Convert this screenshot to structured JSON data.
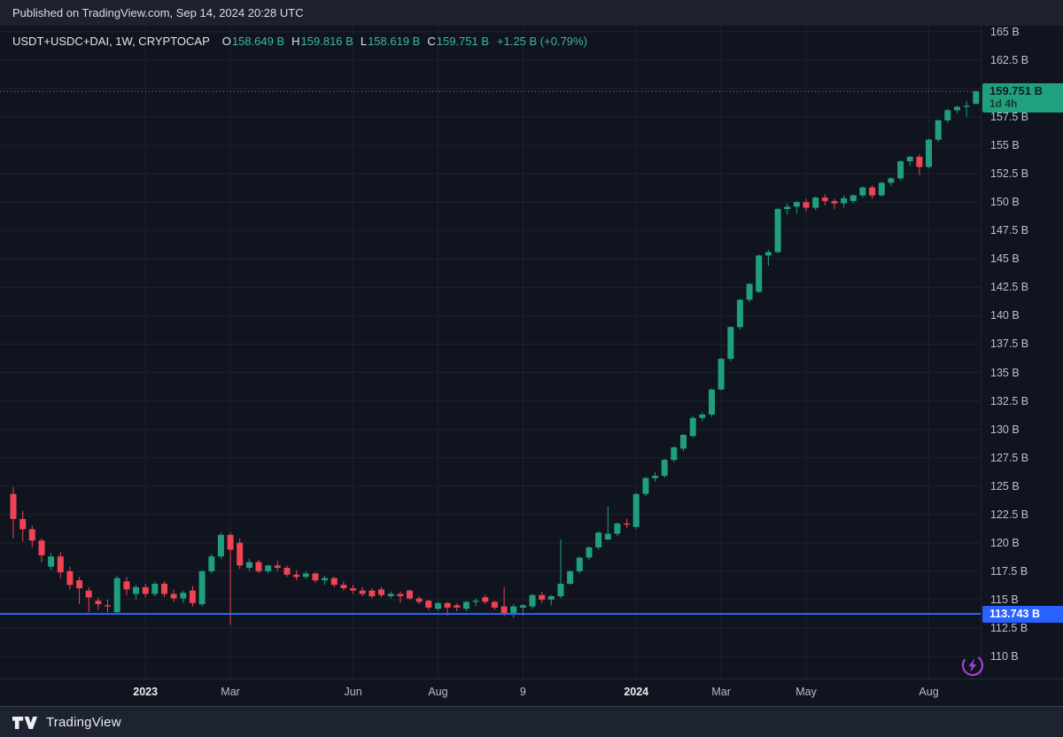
{
  "header": {
    "published": "Published on TradingView.com, Sep 14, 2024 20:28 UTC"
  },
  "legend": {
    "symbol": "USDT+USDC+DAI, 1W, CRYPTOCAP",
    "items": [
      {
        "k": "O",
        "v": "158.649 B"
      },
      {
        "k": "H",
        "v": "159.816 B"
      },
      {
        "k": "L",
        "v": "158.619 B"
      },
      {
        "k": "C",
        "v": "159.751 B"
      }
    ],
    "change": "+1.25 B (+0.79%)"
  },
  "price_scale": {
    "ticks": [
      {
        "value": 165,
        "label": "165 B"
      },
      {
        "value": 162.5,
        "label": "162.5 B"
      },
      {
        "value": 160,
        "label": ""
      },
      {
        "value": 157.5,
        "label": "157.5 B"
      },
      {
        "value": 155,
        "label": "155 B"
      },
      {
        "value": 152.5,
        "label": "152.5 B"
      },
      {
        "value": 150,
        "label": "150 B"
      },
      {
        "value": 147.5,
        "label": "147.5 B"
      },
      {
        "value": 145,
        "label": "145 B"
      },
      {
        "value": 142.5,
        "label": "142.5 B"
      },
      {
        "value": 140,
        "label": "140 B"
      },
      {
        "value": 137.5,
        "label": "137.5 B"
      },
      {
        "value": 135,
        "label": "135 B"
      },
      {
        "value": 132.5,
        "label": "132.5 B"
      },
      {
        "value": 130,
        "label": "130 B"
      },
      {
        "value": 127.5,
        "label": "127.5 B"
      },
      {
        "value": 125,
        "label": "125 B"
      },
      {
        "value": 122.5,
        "label": "122.5 B"
      },
      {
        "value": 120,
        "label": "120 B"
      },
      {
        "value": 117.5,
        "label": "117.5 B"
      },
      {
        "value": 115,
        "label": "115 B"
      },
      {
        "value": 112.5,
        "label": "112.5 B"
      },
      {
        "value": 110,
        "label": "110 B"
      }
    ],
    "last_price_badge": {
      "label": "159.751 B",
      "countdown": "1d 4h",
      "value": 159.751
    },
    "level_badge": {
      "label": "113.743 B",
      "value": 113.743
    }
  },
  "time_scale": {
    "ticks": [
      {
        "label": "2023",
        "week": 14,
        "major": true
      },
      {
        "label": "Mar",
        "week": 23,
        "major": false
      },
      {
        "label": "Jun",
        "week": 36,
        "major": false
      },
      {
        "label": "Aug",
        "week": 45,
        "major": false
      },
      {
        "label": "9",
        "week": 54,
        "major": false
      },
      {
        "label": "2024",
        "week": 66,
        "major": true
      },
      {
        "label": "Mar",
        "week": 75,
        "major": false
      },
      {
        "label": "May",
        "week": 84,
        "major": false
      },
      {
        "label": "Aug",
        "week": 97,
        "major": false
      }
    ]
  },
  "footer": {
    "brand": "TradingView"
  },
  "colors": {
    "background": "#10141f",
    "panel": "#1c212d",
    "footer_bar": "#1d2330",
    "grid": "#1c2230",
    "up": "#209f7e",
    "down": "#ef4454",
    "level_line": "#2962ff",
    "last_price_line": "#4d9b82",
    "badge_up_bg": "#21a07e",
    "badge_up_text": "#0b221c",
    "badge_level_bg": "#2962ff",
    "accent_purple": "#a13fd6",
    "axis_text": "#bac1cf",
    "axis_text_major": "#e9edf4",
    "legend_value": "#3bb9a0"
  },
  "chart_data": {
    "type": "candlestick",
    "symbol": "USDT+USDC+DAI",
    "interval": "1W",
    "exchange": "CRYPTOCAP",
    "unit": "billions USD (market cap)",
    "ylim": [
      108.05,
      165.62
    ],
    "grid": true,
    "level_line": 113.743,
    "last_bar": {
      "open": 158.649,
      "high": 159.816,
      "low": 158.619,
      "close": 159.751,
      "change": "+1.25 B",
      "change_pct": "+0.79%"
    },
    "candle_format": [
      "open",
      "high",
      "low",
      "close"
    ],
    "candles": [
      [
        124.3,
        124.9,
        120.4,
        122.1
      ],
      [
        122.1,
        122.8,
        120.1,
        121.2
      ],
      [
        121.2,
        121.5,
        119.6,
        120.2
      ],
      [
        120.2,
        120.4,
        118.3,
        118.9
      ],
      [
        117.9,
        119.1,
        117.6,
        118.8
      ],
      [
        118.8,
        119.2,
        116.9,
        117.4
      ],
      [
        117.5,
        117.9,
        115.9,
        116.3
      ],
      [
        116.7,
        117.0,
        114.6,
        116.0
      ],
      [
        115.8,
        116.1,
        113.9,
        115.2
      ],
      [
        114.9,
        115.2,
        114.1,
        114.6
      ],
      [
        114.5,
        115.0,
        113.9,
        114.4
      ],
      [
        113.9,
        117.1,
        113.7,
        116.9
      ],
      [
        116.6,
        117.0,
        115.4,
        115.9
      ],
      [
        115.5,
        116.3,
        115.0,
        116.1
      ],
      [
        116.1,
        116.4,
        115.2,
        115.5
      ],
      [
        115.5,
        116.6,
        115.3,
        116.4
      ],
      [
        116.4,
        116.6,
        115.2,
        115.5
      ],
      [
        115.5,
        115.9,
        114.8,
        115.1
      ],
      [
        115.1,
        115.8,
        114.7,
        115.6
      ],
      [
        115.8,
        116.2,
        114.4,
        114.7
      ],
      [
        114.6,
        117.6,
        114.4,
        117.5
      ],
      [
        117.5,
        119.0,
        117.3,
        118.8
      ],
      [
        118.8,
        120.9,
        118.6,
        120.7
      ],
      [
        120.7,
        120.9,
        112.8,
        119.4
      ],
      [
        120.0,
        120.4,
        117.7,
        118.0
      ],
      [
        117.8,
        118.6,
        117.5,
        118.3
      ],
      [
        118.3,
        118.5,
        117.3,
        117.5
      ],
      [
        117.5,
        118.1,
        117.3,
        118.0
      ],
      [
        118.0,
        118.4,
        117.5,
        117.8
      ],
      [
        117.8,
        118.0,
        117.0,
        117.2
      ],
      [
        117.2,
        117.6,
        116.7,
        117.0
      ],
      [
        117.0,
        117.5,
        116.8,
        117.3
      ],
      [
        117.3,
        117.4,
        116.5,
        116.7
      ],
      [
        116.7,
        117.1,
        116.3,
        116.9
      ],
      [
        116.9,
        117.0,
        116.1,
        116.3
      ],
      [
        116.3,
        116.6,
        115.8,
        116.0
      ],
      [
        116.0,
        116.3,
        115.5,
        115.8
      ],
      [
        115.8,
        116.1,
        115.3,
        115.5
      ],
      [
        115.8,
        116.0,
        115.1,
        115.3
      ],
      [
        115.9,
        116.1,
        115.2,
        115.4
      ],
      [
        115.3,
        115.7,
        115.1,
        115.5
      ],
      [
        115.5,
        115.7,
        114.7,
        115.3
      ],
      [
        115.8,
        115.9,
        115.0,
        115.1
      ],
      [
        115.1,
        115.3,
        114.6,
        114.8
      ],
      [
        114.9,
        115.0,
        114.1,
        114.3
      ],
      [
        114.2,
        114.8,
        114.0,
        114.7
      ],
      [
        114.7,
        114.8,
        113.6,
        114.3
      ],
      [
        114.5,
        114.7,
        114.0,
        114.3
      ],
      [
        114.2,
        114.9,
        114.0,
        114.8
      ],
      [
        114.8,
        115.1,
        114.4,
        114.9
      ],
      [
        115.2,
        115.4,
        114.6,
        114.8
      ],
      [
        114.8,
        114.9,
        114.1,
        114.3
      ],
      [
        114.4,
        116.1,
        113.5,
        113.7
      ],
      [
        113.7,
        114.6,
        113.4,
        114.4
      ],
      [
        114.3,
        114.6,
        113.6,
        114.5
      ],
      [
        114.4,
        115.5,
        114.2,
        115.4
      ],
      [
        115.4,
        115.7,
        114.7,
        115.0
      ],
      [
        115.0,
        115.4,
        114.5,
        115.3
      ],
      [
        115.3,
        120.3,
        115.1,
        116.4
      ],
      [
        116.4,
        117.6,
        116.3,
        117.5
      ],
      [
        117.5,
        118.8,
        117.3,
        118.7
      ],
      [
        118.7,
        119.7,
        118.5,
        119.6
      ],
      [
        119.6,
        121.0,
        119.4,
        120.9
      ],
      [
        120.3,
        123.2,
        120.2,
        120.8
      ],
      [
        120.8,
        121.8,
        120.6,
        121.7
      ],
      [
        121.7,
        122.1,
        121.3,
        121.6
      ],
      [
        121.4,
        124.4,
        121.2,
        124.3
      ],
      [
        124.3,
        125.8,
        124.1,
        125.7
      ],
      [
        125.7,
        126.2,
        125.4,
        125.9
      ],
      [
        125.9,
        127.4,
        125.7,
        127.3
      ],
      [
        127.3,
        128.5,
        127.1,
        128.4
      ],
      [
        128.3,
        129.6,
        128.1,
        129.5
      ],
      [
        129.4,
        131.2,
        129.3,
        131.0
      ],
      [
        131.0,
        131.5,
        130.7,
        131.3
      ],
      [
        131.3,
        133.6,
        131.1,
        133.5
      ],
      [
        133.5,
        136.3,
        133.4,
        136.2
      ],
      [
        136.2,
        139.1,
        136.0,
        139.0
      ],
      [
        139.0,
        141.5,
        138.8,
        141.4
      ],
      [
        141.4,
        142.9,
        141.2,
        142.8
      ],
      [
        142.1,
        145.4,
        142.0,
        145.3
      ],
      [
        145.3,
        145.8,
        144.4,
        145.6
      ],
      [
        145.6,
        149.5,
        145.5,
        149.4
      ],
      [
        149.4,
        149.9,
        148.9,
        149.6
      ],
      [
        149.6,
        150.1,
        149.0,
        150.0
      ],
      [
        150.0,
        150.3,
        149.2,
        149.5
      ],
      [
        149.5,
        150.5,
        149.3,
        150.4
      ],
      [
        150.4,
        150.7,
        149.7,
        150.1
      ],
      [
        150.1,
        150.3,
        149.4,
        149.9
      ],
      [
        149.9,
        150.6,
        149.5,
        150.35
      ],
      [
        150.1,
        150.7,
        149.9,
        150.6
      ],
      [
        150.6,
        151.4,
        150.4,
        151.3
      ],
      [
        151.3,
        151.5,
        150.3,
        150.6
      ],
      [
        150.6,
        151.8,
        150.5,
        151.7
      ],
      [
        151.7,
        152.2,
        151.4,
        152.1
      ],
      [
        152.1,
        153.7,
        151.9,
        153.6
      ],
      [
        153.6,
        154.1,
        153.2,
        154.0
      ],
      [
        154.0,
        154.2,
        152.4,
        153.1
      ],
      [
        153.1,
        155.6,
        153.0,
        155.5
      ],
      [
        155.5,
        157.3,
        155.3,
        157.2
      ],
      [
        157.2,
        158.2,
        157.0,
        158.1
      ],
      [
        158.1,
        158.5,
        157.8,
        158.4
      ],
      [
        158.4,
        158.9,
        157.5,
        158.5
      ],
      [
        158.649,
        159.816,
        158.619,
        159.751
      ]
    ]
  }
}
